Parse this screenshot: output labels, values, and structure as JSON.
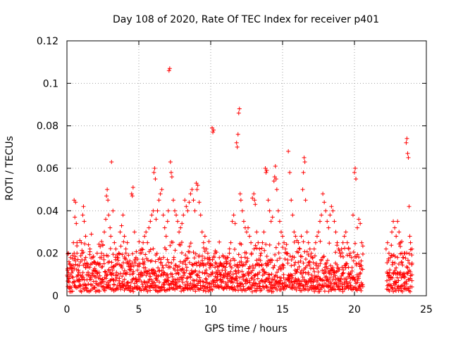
{
  "chart_data": {
    "type": "scatter",
    "title": "Day 108 of 2020, Rate Of TEC Index for receiver p401",
    "xlabel": "GPS time / hours",
    "ylabel": "ROTI / TECUs",
    "xlim": [
      0,
      25
    ],
    "ylim": [
      0,
      0.12
    ],
    "xticks": [
      0,
      5,
      10,
      15,
      20,
      25
    ],
    "xtick_labels": [
      "0",
      "5",
      "10",
      "15",
      "20",
      "25"
    ],
    "yticks": [
      0,
      0.02,
      0.04,
      0.06,
      0.08,
      0.1,
      0.12
    ],
    "ytick_labels": [
      "0",
      "0.02",
      "0.04",
      "0.06",
      "0.08",
      "0.1",
      "0.12"
    ],
    "grid": true,
    "marker": "+",
    "color": "#ff0000",
    "data_gap_hours": [
      20.6,
      22.2
    ],
    "series": [
      {
        "points": [
          [
            0.05,
            0.012
          ],
          [
            0.1,
            0.02
          ],
          [
            0.15,
            0.008
          ],
          [
            0.2,
            0.015
          ],
          [
            0.25,
            0.018
          ],
          [
            0.35,
            0.009
          ],
          [
            0.4,
            0.019
          ],
          [
            0.45,
            0.025
          ],
          [
            0.5,
            0.045
          ],
          [
            0.55,
            0.037
          ],
          [
            0.6,
            0.044
          ],
          [
            0.65,
            0.034
          ],
          [
            0.7,
            0.025
          ],
          [
            0.8,
            0.012
          ],
          [
            0.9,
            0.026
          ],
          [
            1.0,
            0.025
          ],
          [
            1.05,
            0.02
          ],
          [
            1.1,
            0.038
          ],
          [
            1.15,
            0.042
          ],
          [
            1.2,
            0.035
          ],
          [
            1.3,
            0.028
          ],
          [
            1.4,
            0.015
          ],
          [
            1.5,
            0.024
          ],
          [
            1.6,
            0.022
          ],
          [
            1.7,
            0.029
          ],
          [
            1.8,
            0.018
          ],
          [
            1.9,
            0.016
          ],
          [
            2.0,
            0.012
          ],
          [
            2.1,
            0.02
          ],
          [
            2.2,
            0.015
          ],
          [
            2.3,
            0.018
          ],
          [
            2.4,
            0.02
          ],
          [
            2.5,
            0.024
          ],
          [
            2.6,
            0.03
          ],
          [
            2.7,
            0.036
          ],
          [
            2.75,
            0.047
          ],
          [
            2.8,
            0.05
          ],
          [
            2.85,
            0.045
          ],
          [
            2.9,
            0.038
          ],
          [
            3.0,
            0.032
          ],
          [
            3.05,
            0.028
          ],
          [
            3.1,
            0.063
          ],
          [
            3.2,
            0.04
          ],
          [
            3.3,
            0.025
          ],
          [
            3.4,
            0.022
          ],
          [
            3.5,
            0.018
          ],
          [
            3.6,
            0.02
          ],
          [
            3.7,
            0.03
          ],
          [
            3.8,
            0.033
          ],
          [
            3.9,
            0.038
          ],
          [
            4.0,
            0.028
          ],
          [
            4.1,
            0.022
          ],
          [
            4.2,
            0.025
          ],
          [
            4.3,
            0.015
          ],
          [
            4.4,
            0.012
          ],
          [
            4.5,
            0.048
          ],
          [
            4.55,
            0.047
          ],
          [
            4.6,
            0.051
          ],
          [
            4.7,
            0.03
          ],
          [
            4.8,
            0.018
          ],
          [
            4.9,
            0.012
          ],
          [
            5.0,
            0.015
          ],
          [
            5.1,
            0.02
          ],
          [
            5.2,
            0.022
          ],
          [
            5.3,
            0.025
          ],
          [
            5.4,
            0.028
          ],
          [
            5.5,
            0.03
          ],
          [
            5.6,
            0.025
          ],
          [
            5.7,
            0.032
          ],
          [
            5.8,
            0.035
          ],
          [
            5.9,
            0.038
          ],
          [
            6.0,
            0.04
          ],
          [
            6.05,
            0.058
          ],
          [
            6.1,
            0.06
          ],
          [
            6.15,
            0.055
          ],
          [
            6.2,
            0.036
          ],
          [
            6.3,
            0.04
          ],
          [
            6.4,
            0.045
          ],
          [
            6.5,
            0.048
          ],
          [
            6.6,
            0.05
          ],
          [
            6.7,
            0.038
          ],
          [
            6.8,
            0.032
          ],
          [
            6.9,
            0.028
          ],
          [
            7.0,
            0.035
          ],
          [
            7.05,
            0.04
          ],
          [
            7.1,
            0.106
          ],
          [
            7.15,
            0.107
          ],
          [
            7.2,
            0.063
          ],
          [
            7.25,
            0.058
          ],
          [
            7.3,
            0.056
          ],
          [
            7.4,
            0.045
          ],
          [
            7.5,
            0.04
          ],
          [
            7.6,
            0.038
          ],
          [
            7.7,
            0.035
          ],
          [
            7.8,
            0.03
          ],
          [
            7.9,
            0.032
          ],
          [
            8.0,
            0.034
          ],
          [
            8.1,
            0.038
          ],
          [
            8.2,
            0.045
          ],
          [
            8.3,
            0.042
          ],
          [
            8.4,
            0.04
          ],
          [
            8.5,
            0.044
          ],
          [
            8.6,
            0.048
          ],
          [
            8.7,
            0.05
          ],
          [
            8.8,
            0.045
          ],
          [
            8.9,
            0.04
          ],
          [
            9.0,
            0.053
          ],
          [
            9.05,
            0.05
          ],
          [
            9.1,
            0.052
          ],
          [
            9.2,
            0.044
          ],
          [
            9.3,
            0.038
          ],
          [
            9.4,
            0.03
          ],
          [
            9.5,
            0.025
          ],
          [
            9.6,
            0.028
          ],
          [
            9.7,
            0.022
          ],
          [
            9.8,
            0.02
          ],
          [
            9.9,
            0.018
          ],
          [
            10.0,
            0.015
          ],
          [
            10.1,
            0.079
          ],
          [
            10.15,
            0.077
          ],
          [
            10.2,
            0.078
          ],
          [
            10.3,
            0.02
          ],
          [
            10.4,
            0.015
          ],
          [
            10.5,
            0.012
          ],
          [
            10.6,
            0.018
          ],
          [
            10.7,
            0.015
          ],
          [
            10.8,
            0.012
          ],
          [
            10.9,
            0.01
          ],
          [
            11.0,
            0.012
          ],
          [
            11.1,
            0.015
          ],
          [
            11.2,
            0.018
          ],
          [
            11.3,
            0.02
          ],
          [
            11.4,
            0.025
          ],
          [
            11.5,
            0.035
          ],
          [
            11.6,
            0.038
          ],
          [
            11.7,
            0.034
          ],
          [
            11.8,
            0.072
          ],
          [
            11.85,
            0.07
          ],
          [
            11.9,
            0.076
          ],
          [
            11.95,
            0.086
          ],
          [
            12.0,
            0.088
          ],
          [
            12.05,
            0.048
          ],
          [
            12.1,
            0.045
          ],
          [
            12.2,
            0.04
          ],
          [
            12.3,
            0.035
          ],
          [
            12.4,
            0.032
          ],
          [
            12.5,
            0.03
          ],
          [
            12.6,
            0.032
          ],
          [
            12.7,
            0.028
          ],
          [
            12.8,
            0.025
          ],
          [
            12.9,
            0.046
          ],
          [
            13.0,
            0.048
          ],
          [
            13.05,
            0.045
          ],
          [
            13.1,
            0.043
          ],
          [
            13.2,
            0.03
          ],
          [
            13.3,
            0.025
          ],
          [
            13.4,
            0.022
          ],
          [
            13.5,
            0.02
          ],
          [
            13.6,
            0.025
          ],
          [
            13.7,
            0.03
          ],
          [
            13.8,
            0.06
          ],
          [
            13.85,
            0.058
          ],
          [
            13.9,
            0.059
          ],
          [
            14.0,
            0.045
          ],
          [
            14.1,
            0.04
          ],
          [
            14.2,
            0.035
          ],
          [
            14.3,
            0.037
          ],
          [
            14.4,
            0.054
          ],
          [
            14.45,
            0.056
          ],
          [
            14.5,
            0.061
          ],
          [
            14.55,
            0.055
          ],
          [
            14.6,
            0.05
          ],
          [
            14.7,
            0.04
          ],
          [
            14.8,
            0.035
          ],
          [
            14.9,
            0.03
          ],
          [
            15.0,
            0.028
          ],
          [
            15.1,
            0.025
          ],
          [
            15.2,
            0.022
          ],
          [
            15.3,
            0.02
          ],
          [
            15.4,
            0.068
          ],
          [
            15.5,
            0.058
          ],
          [
            15.6,
            0.045
          ],
          [
            15.7,
            0.038
          ],
          [
            15.8,
            0.03
          ],
          [
            15.9,
            0.028
          ],
          [
            16.0,
            0.026
          ],
          [
            16.1,
            0.025
          ],
          [
            16.2,
            0.022
          ],
          [
            16.3,
            0.028
          ],
          [
            16.4,
            0.05
          ],
          [
            16.45,
            0.058
          ],
          [
            16.5,
            0.065
          ],
          [
            16.55,
            0.063
          ],
          [
            16.6,
            0.045
          ],
          [
            16.7,
            0.03
          ],
          [
            16.8,
            0.025
          ],
          [
            16.9,
            0.022
          ],
          [
            17.0,
            0.02
          ],
          [
            17.1,
            0.018
          ],
          [
            17.2,
            0.022
          ],
          [
            17.3,
            0.025
          ],
          [
            17.4,
            0.028
          ],
          [
            17.5,
            0.03
          ],
          [
            17.6,
            0.035
          ],
          [
            17.7,
            0.038
          ],
          [
            17.8,
            0.048
          ],
          [
            17.9,
            0.044
          ],
          [
            18.0,
            0.04
          ],
          [
            18.1,
            0.035
          ],
          [
            18.2,
            0.032
          ],
          [
            18.3,
            0.038
          ],
          [
            18.4,
            0.042
          ],
          [
            18.5,
            0.04
          ],
          [
            18.6,
            0.035
          ],
          [
            18.7,
            0.03
          ],
          [
            18.8,
            0.025
          ],
          [
            18.9,
            0.022
          ],
          [
            19.0,
            0.02
          ],
          [
            19.1,
            0.022
          ],
          [
            19.2,
            0.025
          ],
          [
            19.3,
            0.028
          ],
          [
            19.4,
            0.03
          ],
          [
            19.5,
            0.025
          ],
          [
            19.6,
            0.022
          ],
          [
            19.7,
            0.02
          ],
          [
            19.8,
            0.018
          ],
          [
            19.9,
            0.038
          ],
          [
            20.0,
            0.058
          ],
          [
            20.05,
            0.06
          ],
          [
            20.1,
            0.055
          ],
          [
            20.2,
            0.032
          ],
          [
            20.3,
            0.036
          ],
          [
            20.4,
            0.034
          ],
          [
            20.5,
            0.025
          ],
          [
            22.2,
            0.022
          ],
          [
            22.3,
            0.025
          ],
          [
            22.4,
            0.02
          ],
          [
            22.5,
            0.018
          ],
          [
            22.6,
            0.03
          ],
          [
            22.7,
            0.035
          ],
          [
            22.8,
            0.032
          ],
          [
            22.9,
            0.028
          ],
          [
            23.0,
            0.035
          ],
          [
            23.1,
            0.03
          ],
          [
            23.2,
            0.025
          ],
          [
            23.3,
            0.02
          ],
          [
            23.4,
            0.018
          ],
          [
            23.5,
            0.02
          ],
          [
            23.6,
            0.072
          ],
          [
            23.65,
            0.074
          ],
          [
            23.7,
            0.067
          ],
          [
            23.75,
            0.065
          ],
          [
            23.8,
            0.042
          ],
          [
            23.85,
            0.028
          ],
          [
            23.9,
            0.025
          ],
          [
            24.0,
            0.022
          ]
        ]
      }
    ]
  }
}
